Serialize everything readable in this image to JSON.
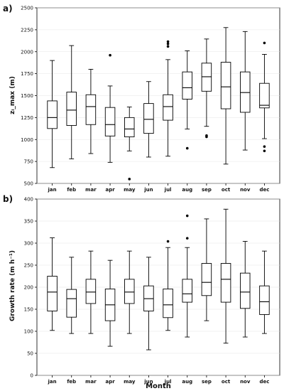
{
  "panels": [
    {
      "label": "a)",
      "ylabel": "zᵢ_max (m)",
      "xlabel": "",
      "ylim": [
        500,
        2500
      ],
      "yticks": [
        500,
        750,
        1000,
        1250,
        1500,
        1750,
        2000,
        2250,
        2500
      ]
    },
    {
      "label": "b)",
      "ylabel": "Growth rate (m h⁻¹)",
      "xlabel": "Month",
      "ylim": [
        0,
        400
      ],
      "yticks": [
        0,
        50,
        100,
        150,
        200,
        250,
        300,
        350,
        400
      ]
    }
  ],
  "chart_data": [
    {
      "type": "boxplot",
      "categories": [
        "jan",
        "feb",
        "mar",
        "apr",
        "may",
        "jun",
        "jul",
        "aug",
        "sep",
        "oct",
        "nov",
        "dec"
      ],
      "boxes": [
        {
          "whislo": 680,
          "q1": 1125,
          "med": 1250,
          "q3": 1440,
          "whishi": 1900,
          "fliers": []
        },
        {
          "whislo": 780,
          "q1": 1160,
          "med": 1335,
          "q3": 1540,
          "whishi": 2070,
          "fliers": []
        },
        {
          "whislo": 840,
          "q1": 1170,
          "med": 1375,
          "q3": 1510,
          "whishi": 1800,
          "fliers": []
        },
        {
          "whislo": 740,
          "q1": 1040,
          "med": 1170,
          "q3": 1365,
          "whishi": 1610,
          "fliers": [
            1960
          ]
        },
        {
          "whislo": 870,
          "q1": 1030,
          "med": 1120,
          "q3": 1250,
          "whishi": 1370,
          "fliers": [
            550
          ]
        },
        {
          "whislo": 800,
          "q1": 1070,
          "med": 1230,
          "q3": 1410,
          "whishi": 1660,
          "fliers": []
        },
        {
          "whislo": 810,
          "q1": 1220,
          "med": 1375,
          "q3": 1510,
          "whishi": 1910,
          "fliers": [
            2060,
            2090,
            2115
          ]
        },
        {
          "whislo": 1120,
          "q1": 1460,
          "med": 1590,
          "q3": 1770,
          "whishi": 2010,
          "fliers": [
            900
          ]
        },
        {
          "whislo": 1150,
          "q1": 1550,
          "med": 1715,
          "q3": 1870,
          "whishi": 2145,
          "fliers": [
            1030,
            1045
          ]
        },
        {
          "whislo": 720,
          "q1": 1350,
          "med": 1600,
          "q3": 1880,
          "whishi": 2275,
          "fliers": []
        },
        {
          "whislo": 880,
          "q1": 1310,
          "med": 1535,
          "q3": 1770,
          "whishi": 2230,
          "fliers": []
        },
        {
          "whislo": 1010,
          "q1": 1360,
          "med": 1390,
          "q3": 1640,
          "whishi": 1970,
          "fliers": [
            870,
            920,
            2100
          ]
        }
      ]
    },
    {
      "type": "boxplot",
      "categories": [
        "jan",
        "feb",
        "mar",
        "apr",
        "may",
        "jun",
        "jul",
        "aug",
        "sep",
        "oct",
        "nov",
        "dec"
      ],
      "boxes": [
        {
          "whislo": 102,
          "q1": 146,
          "med": 189,
          "q3": 225,
          "whishi": 312,
          "fliers": []
        },
        {
          "whislo": 95,
          "q1": 132,
          "med": 174,
          "q3": 195,
          "whishi": 268,
          "fliers": []
        },
        {
          "whislo": 95,
          "q1": 163,
          "med": 189,
          "q3": 218,
          "whishi": 282,
          "fliers": []
        },
        {
          "whislo": 66,
          "q1": 124,
          "med": 160,
          "q3": 196,
          "whishi": 261,
          "fliers": []
        },
        {
          "whislo": 95,
          "q1": 163,
          "med": 189,
          "q3": 218,
          "whishi": 282,
          "fliers": []
        },
        {
          "whislo": 58,
          "q1": 146,
          "med": 174,
          "q3": 203,
          "whishi": 268,
          "fliers": []
        },
        {
          "whislo": 102,
          "q1": 131,
          "med": 160,
          "q3": 196,
          "whishi": 290,
          "fliers": [
            304
          ]
        },
        {
          "whislo": 87,
          "q1": 166,
          "med": 185,
          "q3": 218,
          "whishi": 290,
          "fliers": [
            311,
            362
          ]
        },
        {
          "whislo": 124,
          "q1": 181,
          "med": 211,
          "q3": 254,
          "whishi": 355,
          "fliers": []
        },
        {
          "whislo": 73,
          "q1": 166,
          "med": 218,
          "q3": 254,
          "whishi": 377,
          "fliers": []
        },
        {
          "whislo": 87,
          "q1": 152,
          "med": 189,
          "q3": 232,
          "whishi": 304,
          "fliers": []
        },
        {
          "whislo": 95,
          "q1": 138,
          "med": 167,
          "q3": 203,
          "whishi": 282,
          "fliers": []
        }
      ]
    }
  ]
}
